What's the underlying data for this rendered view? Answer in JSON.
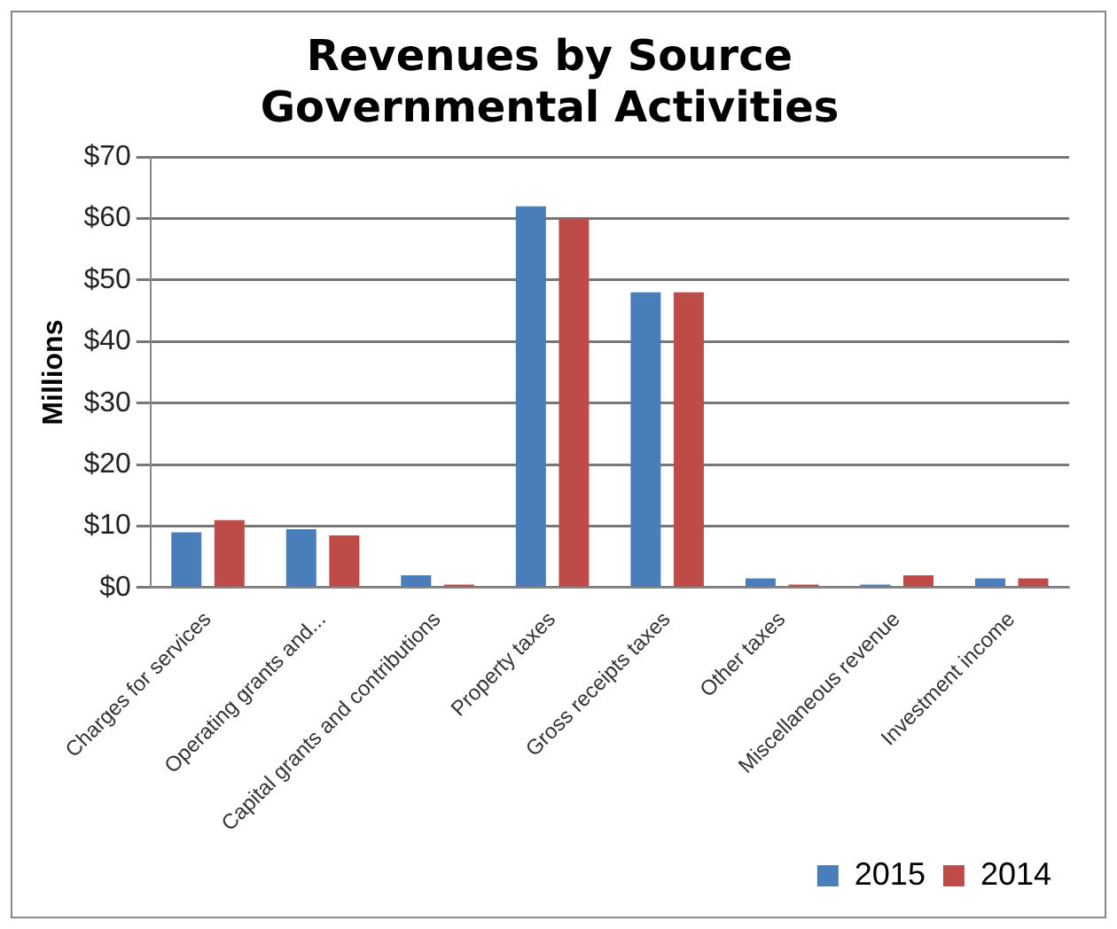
{
  "chart_data": {
    "type": "bar",
    "title": "Revenues by Source",
    "subtitle": "Governmental Activities",
    "ylabel": "Millions",
    "categories": [
      "Charges for services",
      "Operating grants and...",
      "Capital grants and contributions",
      "Property taxes",
      "Gross receipts taxes",
      "Other taxes",
      "Miscellaneous revenue",
      "Investment income"
    ],
    "series": [
      {
        "name": "2015",
        "color": "#4a7ebb",
        "values": [
          9,
          9.5,
          2,
          62,
          48,
          1.5,
          0.5,
          1.5
        ]
      },
      {
        "name": "2014",
        "color": "#be4b48",
        "values": [
          11,
          8.5,
          0.5,
          60,
          48,
          0.5,
          2,
          1.5
        ]
      }
    ],
    "ylim": [
      0,
      70
    ],
    "yticks": [
      {
        "value": 0,
        "label": "$0"
      },
      {
        "value": 10,
        "label": "$10"
      },
      {
        "value": 20,
        "label": "$20"
      },
      {
        "value": 30,
        "label": "$30"
      },
      {
        "value": 40,
        "label": "$40"
      },
      {
        "value": 50,
        "label": "$50"
      },
      {
        "value": 60,
        "label": "$60"
      },
      {
        "value": 70,
        "label": "$70"
      }
    ],
    "grid": "y",
    "legend": "bottom right"
  }
}
